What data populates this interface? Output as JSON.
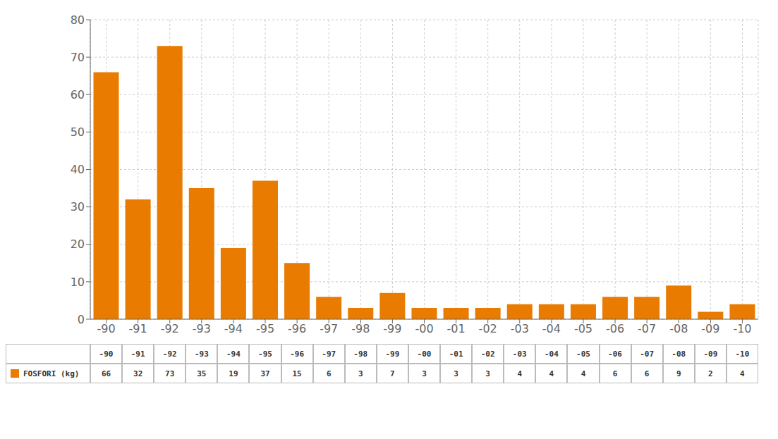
{
  "chart_data": {
    "type": "bar",
    "categories": [
      "-90",
      "-91",
      "-92",
      "-93",
      "-94",
      "-95",
      "-96",
      "-97",
      "-98",
      "-99",
      "-00",
      "-01",
      "-02",
      "-03",
      "-04",
      "-05",
      "-06",
      "-07",
      "-08",
      "-09",
      "-10"
    ],
    "series": [
      {
        "name": "FOSFORI (kg)",
        "color": "#E87B00",
        "values": [
          66,
          32,
          73,
          35,
          19,
          37,
          15,
          6,
          3,
          7,
          3,
          3,
          3,
          4,
          4,
          4,
          6,
          6,
          9,
          2,
          4
        ]
      }
    ],
    "ylim": [
      0,
      80
    ],
    "yticks": [
      0,
      10,
      20,
      30,
      40,
      50,
      60,
      70,
      80
    ],
    "grid": true
  }
}
